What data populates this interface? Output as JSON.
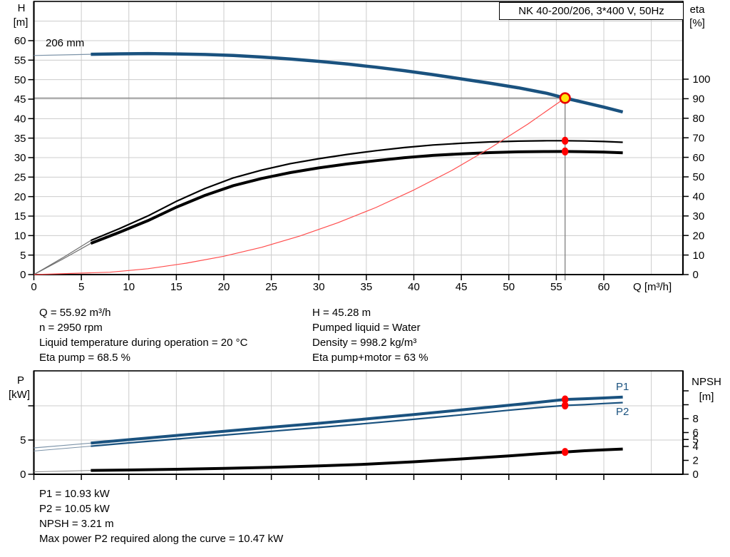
{
  "title_box": "NK 40-200/206, 3*400 V, 50Hz",
  "colors": {
    "curve_blue": "#1a527f",
    "curve_black": "#000000",
    "lead_blue": "#7c93a8",
    "lead_gray": "#6e6e6e",
    "system_red": "#ff4d4d",
    "marker_red": "#ff0000",
    "duty_yellow": "#ffe60a",
    "duty_ring_red": "#e60000",
    "grid_gray": "#cccccc",
    "guide_gray": "#808080",
    "axis_black": "#000000",
    "label_blue": "#1a527f"
  },
  "info_top": {
    "left": [
      "Q = 55.92 m³/h",
      "n = 2950 rpm",
      "Liquid temperature during operation = 20 °C",
      "Eta pump = 68.5 %"
    ],
    "right": [
      "H = 45.28 m",
      "Pumped liquid = Water",
      "Density = 998.2 kg/m³",
      "Eta pump+motor = 63 %"
    ]
  },
  "info_bottom": [
    "P1 = 10.93 kW",
    "P2 = 10.05 kW",
    "NPSH = 3.21 m",
    "Max power P2 required along the curve = 10.47 kW"
  ],
  "chart_data": [
    {
      "type": "line",
      "name": "qh-eta-chart",
      "impeller_label": "206 mm",
      "axes": {
        "x": {
          "unit": "Q [m³/h]",
          "range": [
            0,
            68.3
          ],
          "ticks": [
            [
              0,
              "0"
            ],
            [
              5,
              "5"
            ],
            [
              10,
              "10"
            ],
            [
              15,
              "15"
            ],
            [
              20,
              "20"
            ],
            [
              25,
              "25"
            ],
            [
              30,
              "30"
            ],
            [
              35,
              "35"
            ],
            [
              40,
              "40"
            ],
            [
              45,
              "45"
            ],
            [
              50,
              "50"
            ],
            [
              55,
              "55"
            ],
            [
              60,
              "60"
            ]
          ]
        },
        "left": {
          "title": [
            "H",
            "[m]"
          ],
          "range": [
            0,
            70
          ],
          "ticks": [
            [
              0,
              "0"
            ],
            [
              5,
              "5"
            ],
            [
              10,
              "10"
            ],
            [
              15,
              "15"
            ],
            [
              20,
              "20"
            ],
            [
              25,
              "25"
            ],
            [
              30,
              "30"
            ],
            [
              35,
              "35"
            ],
            [
              40,
              "40"
            ],
            [
              45,
              "45"
            ],
            [
              50,
              "50"
            ],
            [
              55,
              "55"
            ],
            [
              60,
              "60"
            ]
          ]
        },
        "right": {
          "title": [
            "eta",
            "[%]"
          ],
          "range": [
            0,
            140
          ],
          "ticks": [
            [
              0,
              "0"
            ],
            [
              10,
              "10"
            ],
            [
              20,
              "20"
            ],
            [
              30,
              "30"
            ],
            [
              40,
              "40"
            ],
            [
              50,
              "50"
            ],
            [
              60,
              "60"
            ],
            [
              70,
              "70"
            ],
            [
              80,
              "80"
            ],
            [
              90,
              "90"
            ],
            [
              100,
              "100"
            ]
          ]
        }
      },
      "guides": {
        "q": 55.92,
        "h": 45.28
      },
      "series": [
        {
          "name": "h-curve-lead",
          "axis": "left",
          "color": "#7c93a8",
          "width": 1.2,
          "points": [
            [
              0,
              56.2
            ],
            [
              3,
              56.35
            ],
            [
              6,
              56.5
            ]
          ]
        },
        {
          "name": "h-curve",
          "axis": "left",
          "color": "#1a527f",
          "width": 4.5,
          "points": [
            [
              6,
              56.5
            ],
            [
              9,
              56.62
            ],
            [
              12,
              56.68
            ],
            [
              15,
              56.6
            ],
            [
              18,
              56.45
            ],
            [
              21,
              56.2
            ],
            [
              24,
              55.8
            ],
            [
              27,
              55.3
            ],
            [
              30,
              54.7
            ],
            [
              33,
              54.0
            ],
            [
              36,
              53.2
            ],
            [
              39,
              52.3
            ],
            [
              42,
              51.3
            ],
            [
              45,
              50.2
            ],
            [
              48,
              49.1
            ],
            [
              51,
              47.9
            ],
            [
              54,
              46.5
            ],
            [
              55.92,
              45.28
            ],
            [
              58,
              44.1
            ],
            [
              60,
              42.95
            ],
            [
              62,
              41.7
            ]
          ]
        },
        {
          "name": "eta-pump-curve-lead",
          "axis": "right",
          "color": "#6e6e6e",
          "width": 1.2,
          "points": [
            [
              0,
              0
            ],
            [
              3,
              8.5
            ],
            [
              6,
              17.5
            ]
          ]
        },
        {
          "name": "eta-pump-curve",
          "axis": "right",
          "color": "#000000",
          "width": 2.2,
          "points": [
            [
              6,
              17.5
            ],
            [
              9,
              23.5
            ],
            [
              12,
              30
            ],
            [
              15,
              37.5
            ],
            [
              18,
              44
            ],
            [
              21,
              49.5
            ],
            [
              24,
              53.5
            ],
            [
              27,
              56.8
            ],
            [
              30,
              59.3
            ],
            [
              33,
              61.5
            ],
            [
              36,
              63.4
            ],
            [
              39,
              65
            ],
            [
              42,
              66.3
            ],
            [
              45,
              67.2
            ],
            [
              48,
              67.9
            ],
            [
              51,
              68.3
            ],
            [
              54,
              68.5
            ],
            [
              55.92,
              68.5
            ],
            [
              58,
              68.35
            ],
            [
              60,
              68.1
            ],
            [
              62,
              67.7
            ]
          ]
        },
        {
          "name": "eta-pump-motor-curve-lead",
          "axis": "right",
          "color": "#6e6e6e",
          "width": 1.2,
          "points": [
            [
              0,
              0
            ],
            [
              3,
              7.8
            ],
            [
              6,
              16
            ]
          ]
        },
        {
          "name": "eta-pump-motor-curve",
          "axis": "right",
          "color": "#000000",
          "width": 4,
          "points": [
            [
              6,
              16
            ],
            [
              9,
              21.6
            ],
            [
              12,
              27.6
            ],
            [
              15,
              34.5
            ],
            [
              18,
              40.5
            ],
            [
              21,
              45.5
            ],
            [
              24,
              49.2
            ],
            [
              27,
              52.2
            ],
            [
              30,
              54.6
            ],
            [
              33,
              56.6
            ],
            [
              36,
              58.3
            ],
            [
              39,
              59.8
            ],
            [
              42,
              61
            ],
            [
              45,
              61.8
            ],
            [
              48,
              62.4
            ],
            [
              51,
              62.8
            ],
            [
              54,
              62.97
            ],
            [
              55.92,
              63
            ],
            [
              58,
              62.9
            ],
            [
              60,
              62.7
            ],
            [
              62,
              62.3
            ]
          ]
        },
        {
          "name": "system-curve",
          "axis": "left",
          "color": "#ff4d4d",
          "width": 1.2,
          "points": [
            [
              0,
              0
            ],
            [
              8,
              0.6
            ],
            [
              12,
              1.5
            ],
            [
              16,
              2.9
            ],
            [
              20,
              4.7
            ],
            [
              24,
              7.0
            ],
            [
              28,
              9.9
            ],
            [
              32,
              13.3
            ],
            [
              36,
              17.2
            ],
            [
              40,
              21.7
            ],
            [
              44,
              26.7
            ],
            [
              48,
              32.4
            ],
            [
              52,
              38.6
            ],
            [
              55.92,
              45.28
            ]
          ]
        }
      ],
      "markers": [
        {
          "name": "duty-point",
          "axis": "left",
          "q": 55.92,
          "v": 45.28,
          "style": "duty"
        },
        {
          "name": "eta-pump-point",
          "axis": "right",
          "q": 55.92,
          "v": 68.5,
          "style": "red"
        },
        {
          "name": "eta-pump-motor-point",
          "axis": "right",
          "q": 55.92,
          "v": 63,
          "style": "red"
        }
      ]
    },
    {
      "type": "line",
      "name": "power-npsh-chart",
      "p1_label": "P1",
      "p2_label": "P2",
      "axes": {
        "x": {
          "unit": "",
          "range": [
            0,
            68.3
          ],
          "ticks": [
            [
              0,
              ""
            ],
            [
              5,
              ""
            ],
            [
              10,
              ""
            ],
            [
              15,
              ""
            ],
            [
              20,
              ""
            ],
            [
              25,
              ""
            ],
            [
              30,
              ""
            ],
            [
              35,
              ""
            ],
            [
              40,
              ""
            ],
            [
              45,
              ""
            ],
            [
              50,
              ""
            ],
            [
              55,
              ""
            ],
            [
              60,
              ""
            ]
          ]
        },
        "left": {
          "title": [
            "P",
            "[kW]"
          ],
          "range": [
            0,
            15.1
          ],
          "ticks": [
            [
              0,
              "0"
            ],
            [
              5,
              "5"
            ],
            [
              10,
              ""
            ]
          ]
        },
        "right": {
          "title": [
            "NPSH",
            "[m]"
          ],
          "range": [
            0,
            14.9
          ],
          "ticks": [
            [
              0,
              "0"
            ],
            [
              2,
              "2"
            ],
            [
              4,
              "4"
            ],
            [
              5,
              "5"
            ],
            [
              6,
              "6"
            ],
            [
              8,
              "8"
            ],
            [
              10,
              ""
            ],
            [
              12,
              ""
            ]
          ]
        }
      },
      "series": [
        {
          "name": "p1-curve-lead",
          "axis": "left",
          "color": "#7c93a8",
          "width": 1.2,
          "points": [
            [
              0,
              3.85
            ],
            [
              3,
              4.2
            ],
            [
              6,
              4.55
            ]
          ]
        },
        {
          "name": "p1-curve",
          "axis": "left",
          "color": "#1a527f",
          "width": 4,
          "points": [
            [
              6,
              4.55
            ],
            [
              10,
              5.05
            ],
            [
              15,
              5.67
            ],
            [
              20,
              6.28
            ],
            [
              25,
              6.88
            ],
            [
              30,
              7.45
            ],
            [
              35,
              8.08
            ],
            [
              40,
              8.72
            ],
            [
              45,
              9.4
            ],
            [
              50,
              10.08
            ],
            [
              53,
              10.5
            ],
            [
              55.92,
              10.93
            ],
            [
              58,
              11.03
            ],
            [
              60,
              11.15
            ],
            [
              62,
              11.27
            ]
          ]
        },
        {
          "name": "p2-curve-lead",
          "axis": "left",
          "color": "#7c93a8",
          "width": 1,
          "points": [
            [
              0,
              3.4
            ],
            [
              3,
              3.75
            ],
            [
              6,
              4.1
            ]
          ]
        },
        {
          "name": "p2-curve",
          "axis": "left",
          "color": "#1a527f",
          "width": 2.2,
          "points": [
            [
              6,
              4.1
            ],
            [
              10,
              4.58
            ],
            [
              15,
              5.15
            ],
            [
              20,
              5.72
            ],
            [
              25,
              6.28
            ],
            [
              30,
              6.83
            ],
            [
              35,
              7.42
            ],
            [
              40,
              8.03
            ],
            [
              45,
              8.68
            ],
            [
              50,
              9.35
            ],
            [
              53,
              9.73
            ],
            [
              55.92,
              10.05
            ],
            [
              58,
              10.18
            ],
            [
              60,
              10.33
            ],
            [
              62,
              10.47
            ]
          ]
        },
        {
          "name": "npsh-curve-lead",
          "axis": "right",
          "color": "#888888",
          "width": 1,
          "points": [
            [
              0,
              0.35
            ],
            [
              3,
              0.45
            ],
            [
              6,
              0.55
            ]
          ]
        },
        {
          "name": "npsh-curve",
          "axis": "right",
          "color": "#000000",
          "width": 4,
          "points": [
            [
              6,
              0.55
            ],
            [
              10,
              0.62
            ],
            [
              15,
              0.72
            ],
            [
              20,
              0.85
            ],
            [
              25,
              1.0
            ],
            [
              30,
              1.2
            ],
            [
              35,
              1.45
            ],
            [
              40,
              1.8
            ],
            [
              45,
              2.2
            ],
            [
              50,
              2.65
            ],
            [
              53,
              2.93
            ],
            [
              55.92,
              3.21
            ],
            [
              58,
              3.38
            ],
            [
              60,
              3.52
            ],
            [
              62,
              3.63
            ]
          ]
        }
      ],
      "markers": [
        {
          "name": "p1-point",
          "axis": "left",
          "q": 55.92,
          "v": 10.93,
          "style": "red"
        },
        {
          "name": "p2-point",
          "axis": "left",
          "q": 55.92,
          "v": 10.05,
          "style": "red"
        },
        {
          "name": "npsh-point",
          "axis": "right",
          "q": 55.92,
          "v": 3.21,
          "style": "red"
        }
      ]
    }
  ]
}
